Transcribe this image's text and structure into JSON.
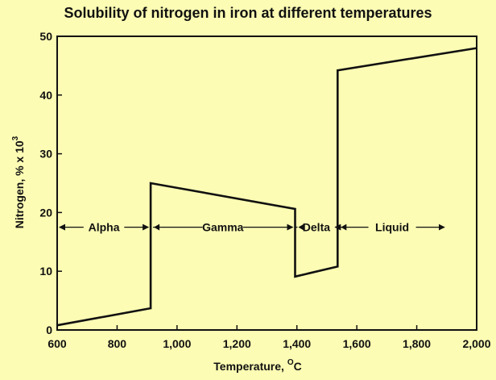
{
  "colors": {
    "background": "#fcfcb4",
    "ink": "#111111"
  },
  "chart_data": {
    "type": "line",
    "title": "Solubility of nitrogen in iron at different temperatures",
    "xlabel": "Temperature, ",
    "xlabel_unit": "C",
    "xlabel_sup": "O",
    "ylabel": "Nitrogen, % x 10",
    "ylabel_sup": "3",
    "xlim": [
      600,
      2000
    ],
    "ylim": [
      0,
      50
    ],
    "x_ticks": [
      600,
      800,
      1000,
      1200,
      1400,
      1600,
      1800,
      2000
    ],
    "x_tick_labels": [
      "600",
      "800",
      "1,000",
      "1,200",
      "1,400",
      "1,600",
      "1,800",
      "2,000"
    ],
    "y_ticks": [
      0,
      10,
      20,
      30,
      40,
      50
    ],
    "y_tick_labels": [
      "0",
      "10",
      "20",
      "30",
      "40",
      "50"
    ],
    "grid": false,
    "legend": "none",
    "series": [
      {
        "x": [
          600,
          912,
          912,
          1394,
          1394,
          1536,
          1536,
          2000
        ],
        "y": [
          0.8,
          3.7,
          25,
          20.6,
          9.1,
          10.8,
          44.2,
          48
        ]
      }
    ],
    "phases": [
      {
        "label": "Alpha",
        "from": 600,
        "to": 912
      },
      {
        "label": "Gamma",
        "from": 912,
        "to": 1394
      },
      {
        "label": "Delta",
        "from": 1394,
        "to": 1536
      },
      {
        "label": "Liquid",
        "from": 1536,
        "to": 1900
      }
    ],
    "phases_y": 17.5
  }
}
